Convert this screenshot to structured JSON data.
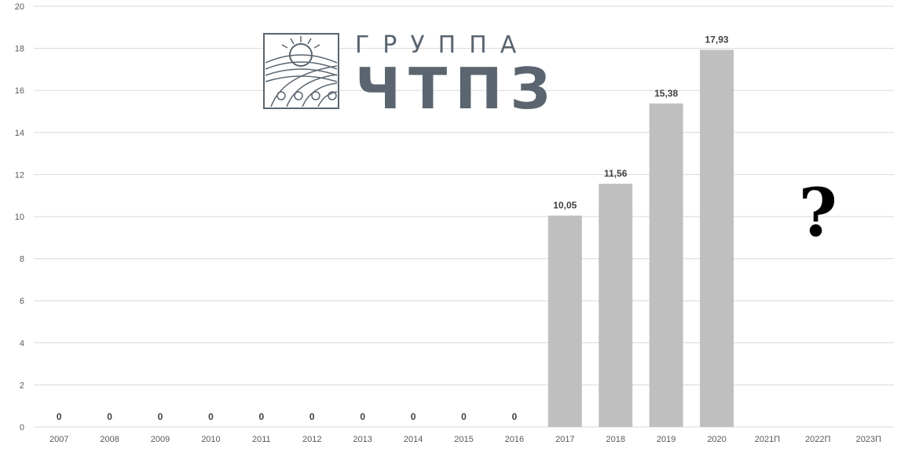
{
  "chart_data": {
    "type": "bar",
    "categories": [
      "2007",
      "2008",
      "2009",
      "2010",
      "2011",
      "2012",
      "2013",
      "2014",
      "2015",
      "2016",
      "2017",
      "2018",
      "2019",
      "2020",
      "2021П",
      "2022П",
      "2023П"
    ],
    "values": [
      0,
      0,
      0,
      0,
      0,
      0,
      0,
      0,
      0,
      0,
      10.05,
      11.56,
      15.38,
      17.93,
      null,
      null,
      null
    ],
    "data_labels": [
      "0",
      "0",
      "0",
      "0",
      "0",
      "0",
      "0",
      "0",
      "0",
      "0",
      "10,05",
      "11,56",
      "15,38",
      "17,93",
      "",
      "",
      ""
    ],
    "yticks": [
      "0",
      "2",
      "4",
      "6",
      "8",
      "10",
      "12",
      "14",
      "16",
      "18",
      "20"
    ],
    "ylim": [
      0,
      20
    ],
    "title": "",
    "xlabel": "",
    "ylabel": "",
    "grid": true,
    "bar_color": "#bfbfbf",
    "grid_color": "#d9d9d9"
  },
  "logo": {
    "line1": "ГРУППА",
    "line2": "ЧТПЗ",
    "color": "#5a6570"
  },
  "annotation": {
    "text": "?",
    "category": "2022П",
    "value": 10.5
  }
}
